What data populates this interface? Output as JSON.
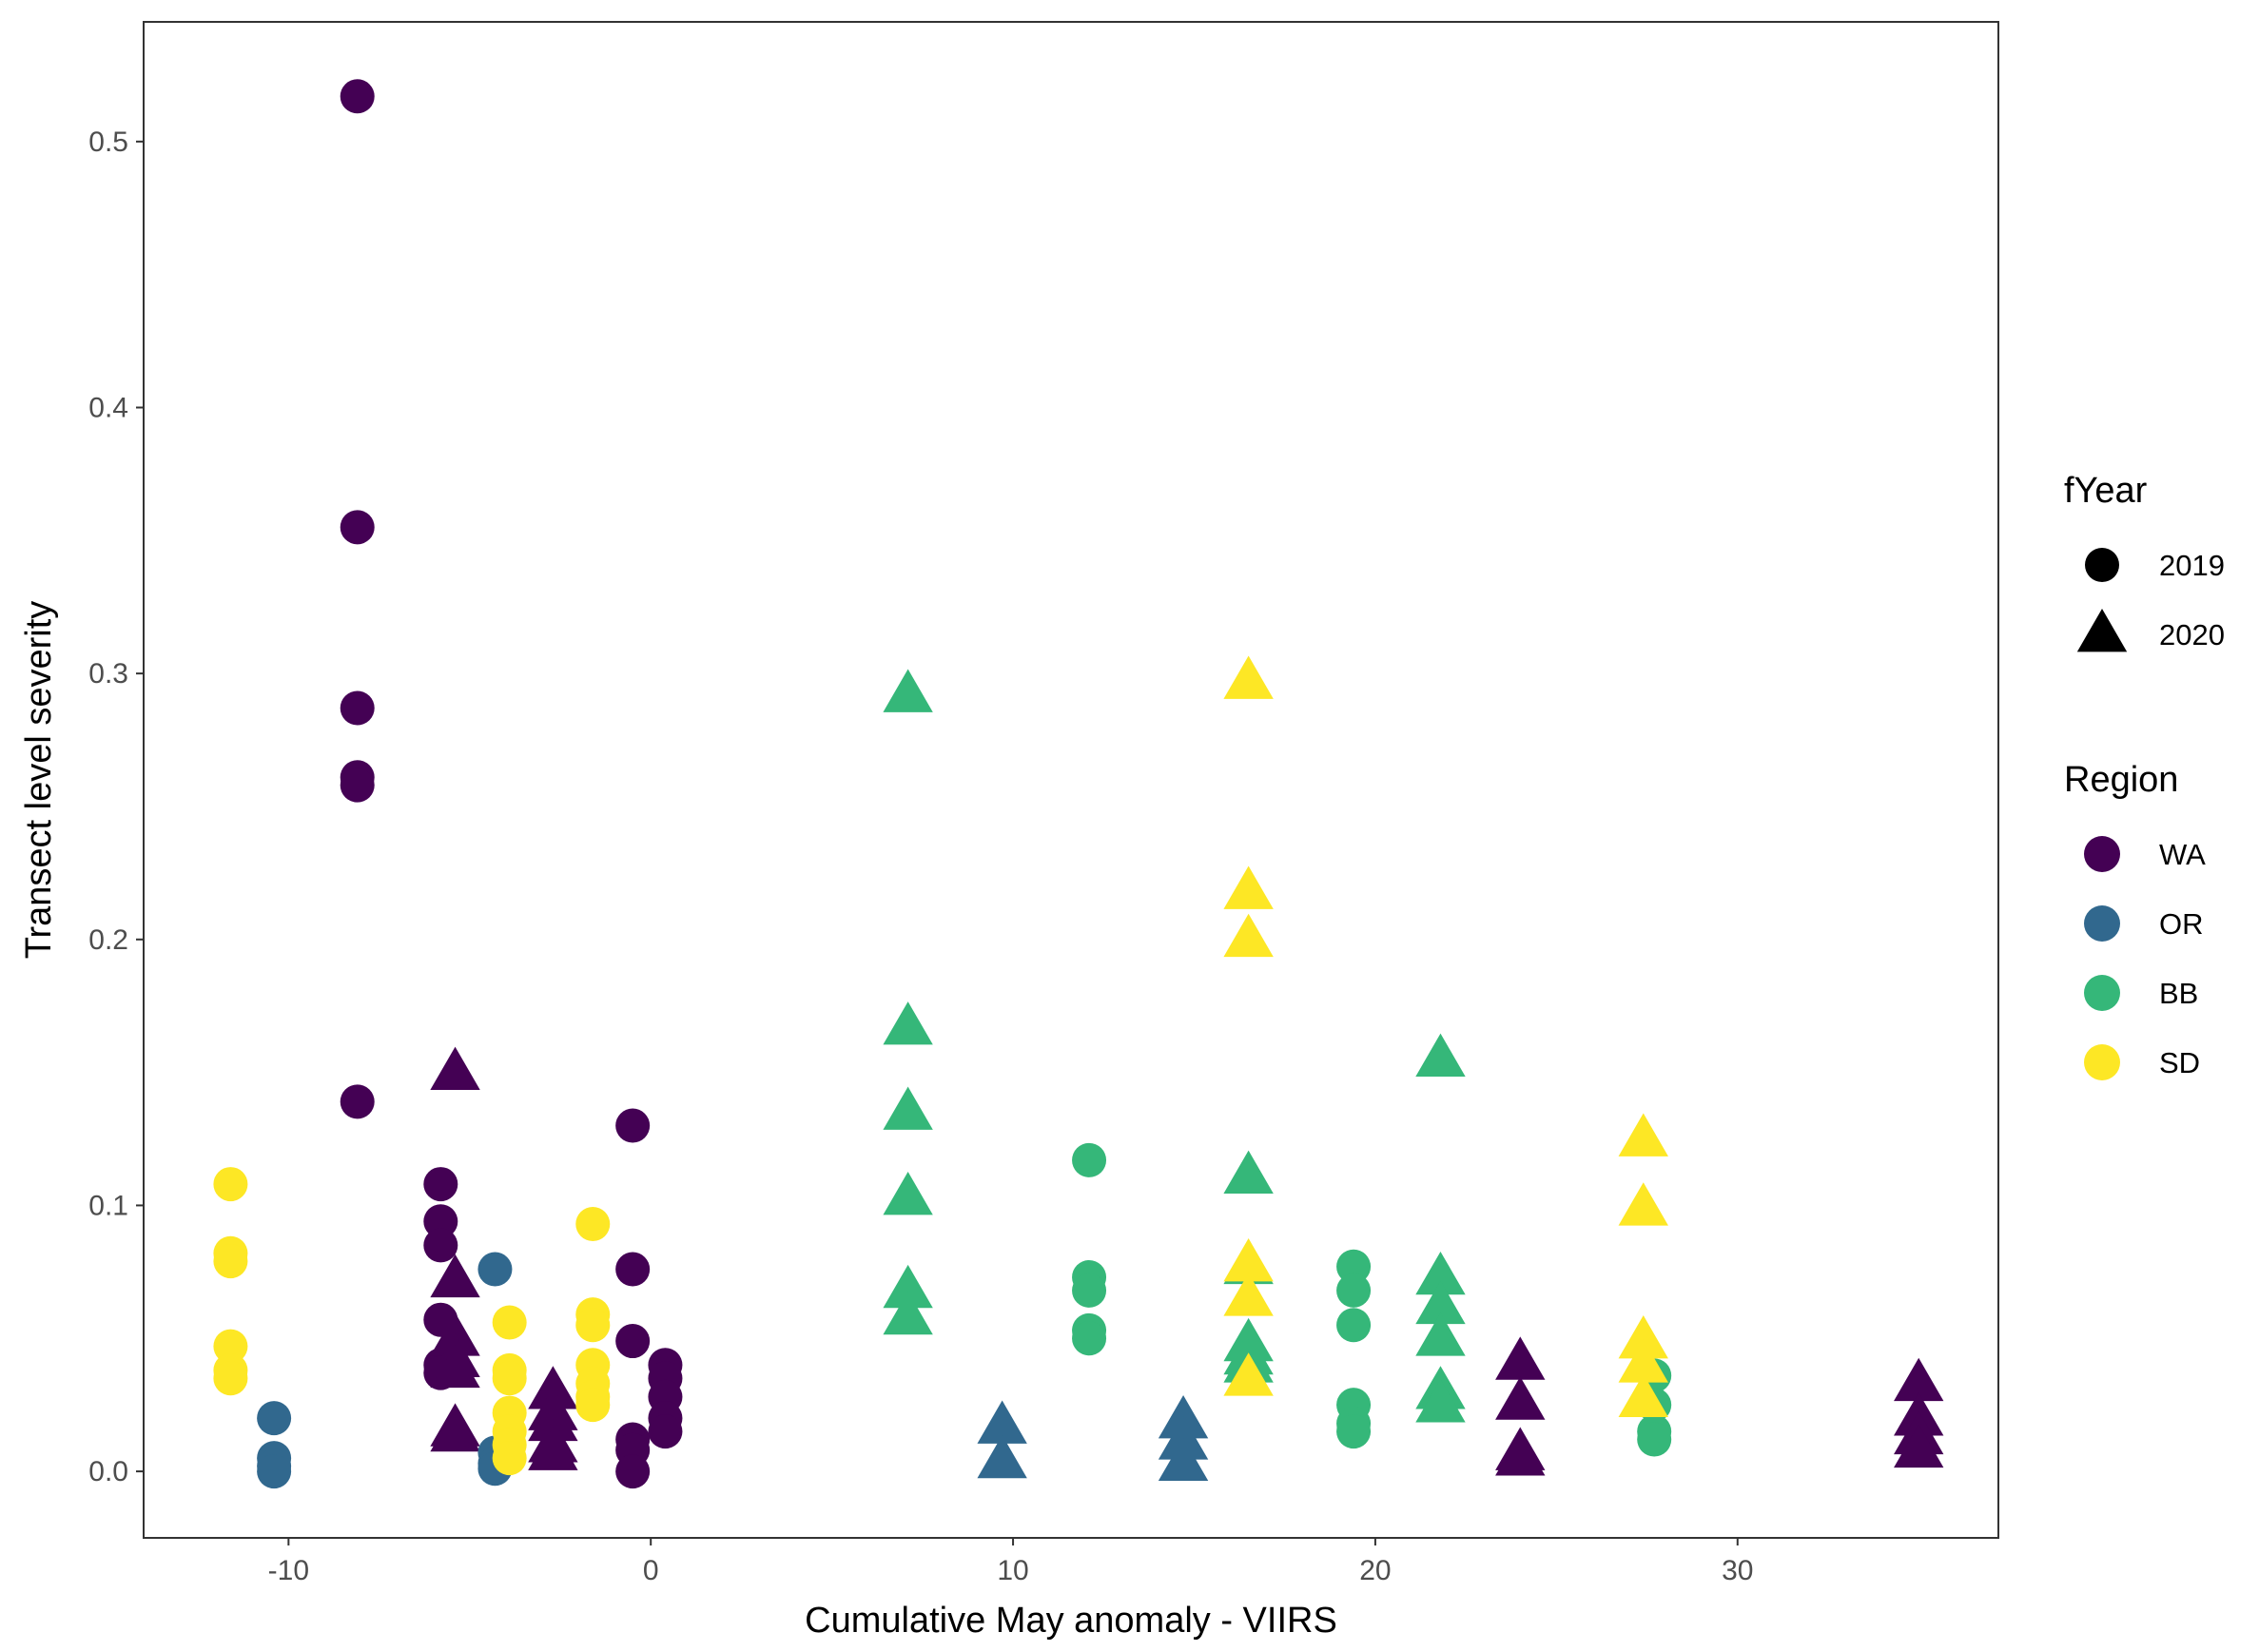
{
  "chart_data": {
    "type": "scatter",
    "xlabel": "Cumulative May anomaly - VIIRS",
    "ylabel": "Transect level severity",
    "xlim": [
      -14,
      37.2
    ],
    "ylim": [
      -0.025,
      0.545
    ],
    "xticks": [
      -10,
      0,
      10,
      20,
      30
    ],
    "xtick_labels": [
      "-10",
      "0",
      "10",
      "20",
      "30"
    ],
    "yticks": [
      0,
      0.1,
      0.2,
      0.3,
      0.4,
      0.5
    ],
    "ytick_labels": [
      "0.0",
      "0.1",
      "0.2",
      "0.3",
      "0.4",
      "0.5"
    ],
    "grid": false,
    "legend_position": "right",
    "legend": {
      "shape": {
        "title": "fYear",
        "entries": [
          {
            "label": "2019",
            "shape": "circle"
          },
          {
            "label": "2020",
            "shape": "triangle"
          }
        ]
      },
      "color": {
        "title": "Region",
        "entries": [
          {
            "label": "WA",
            "color": "#440154"
          },
          {
            "label": "OR",
            "color": "#31688E"
          },
          {
            "label": "BB",
            "color": "#35B779"
          },
          {
            "label": "SD",
            "color": "#FDE725"
          }
        ]
      }
    },
    "colors": {
      "WA": "#440154",
      "OR": "#31688E",
      "BB": "#35B779",
      "SD": "#FDE725"
    },
    "series": [
      {
        "region": "WA",
        "year": "2019",
        "points": [
          [
            -8.1,
            0.517
          ],
          [
            -8.1,
            0.355
          ],
          [
            -8.1,
            0.287
          ],
          [
            -8.1,
            0.261
          ],
          [
            -8.1,
            0.258
          ],
          [
            -8.1,
            0.139
          ],
          [
            -5.8,
            0.108
          ],
          [
            -5.8,
            0.094
          ],
          [
            -5.8,
            0.085
          ],
          [
            -5.8,
            0.057
          ],
          [
            -5.8,
            0.04
          ],
          [
            -5.8,
            0.037
          ],
          [
            -0.5,
            0.13
          ],
          [
            -0.5,
            0.076
          ],
          [
            -0.5,
            0.049
          ],
          [
            -0.5,
            0.012
          ],
          [
            -0.5,
            0.008
          ],
          [
            -0.5,
            0.0
          ],
          [
            0.4,
            0.04
          ],
          [
            0.4,
            0.035
          ],
          [
            0.4,
            0.028
          ],
          [
            0.4,
            0.02
          ],
          [
            0.4,
            0.015
          ]
        ]
      },
      {
        "region": "WA",
        "year": "2020",
        "points": [
          [
            -5.4,
            0.15
          ],
          [
            -5.4,
            0.072
          ],
          [
            -5.4,
            0.05
          ],
          [
            -5.4,
            0.042
          ],
          [
            -5.4,
            0.038
          ],
          [
            -5.4,
            0.016
          ],
          [
            -5.4,
            0.014
          ],
          [
            -2.7,
            0.03
          ],
          [
            -2.7,
            0.022
          ],
          [
            -2.7,
            0.018
          ],
          [
            -2.7,
            0.01
          ],
          [
            -2.7,
            0.007
          ],
          [
            24,
            0.041
          ],
          [
            24,
            0.026
          ],
          [
            24,
            0.007
          ],
          [
            24,
            0.005
          ],
          [
            35,
            0.033
          ],
          [
            35,
            0.02
          ],
          [
            35,
            0.013
          ],
          [
            35,
            0.008
          ]
        ]
      },
      {
        "region": "OR",
        "year": "2019",
        "points": [
          [
            -10.4,
            0.02
          ],
          [
            -10.4,
            0.005
          ],
          [
            -10.4,
            0.002
          ],
          [
            -10.4,
            0.0
          ],
          [
            -4.3,
            0.076
          ],
          [
            -4.3,
            0.007
          ],
          [
            -4.3,
            0.003
          ],
          [
            -4.3,
            0.001
          ]
        ]
      },
      {
        "region": "OR",
        "year": "2020",
        "points": [
          [
            9.7,
            0.017
          ],
          [
            9.7,
            0.004
          ],
          [
            14.7,
            0.019
          ],
          [
            14.7,
            0.011
          ],
          [
            14.7,
            0.003
          ]
        ]
      },
      {
        "region": "BB",
        "year": "2019",
        "points": [
          [
            12.1,
            0.117
          ],
          [
            12.1,
            0.073
          ],
          [
            12.1,
            0.068
          ],
          [
            12.1,
            0.053
          ],
          [
            12.1,
            0.05
          ],
          [
            19.4,
            0.077
          ],
          [
            19.4,
            0.068
          ],
          [
            19.4,
            0.055
          ],
          [
            19.4,
            0.025
          ],
          [
            19.4,
            0.018
          ],
          [
            19.4,
            0.015
          ],
          [
            27.7,
            0.036
          ],
          [
            27.7,
            0.025
          ],
          [
            27.7,
            0.015
          ],
          [
            27.7,
            0.012
          ]
        ]
      },
      {
        "region": "BB",
        "year": "2020",
        "points": [
          [
            7.1,
            0.292
          ],
          [
            7.1,
            0.167
          ],
          [
            7.1,
            0.135
          ],
          [
            7.1,
            0.103
          ],
          [
            7.1,
            0.068
          ],
          [
            7.1,
            0.058
          ],
          [
            16.5,
            0.111
          ],
          [
            16.5,
            0.077
          ],
          [
            16.5,
            0.048
          ],
          [
            16.5,
            0.043
          ],
          [
            16.5,
            0.04
          ],
          [
            21.8,
            0.155
          ],
          [
            21.8,
            0.073
          ],
          [
            21.8,
            0.062
          ],
          [
            21.8,
            0.05
          ],
          [
            21.8,
            0.03
          ],
          [
            21.8,
            0.025
          ]
        ]
      },
      {
        "region": "SD",
        "year": "2019",
        "points": [
          [
            -11.6,
            0.108
          ],
          [
            -11.6,
            0.082
          ],
          [
            -11.6,
            0.079
          ],
          [
            -11.6,
            0.047
          ],
          [
            -11.6,
            0.038
          ],
          [
            -11.6,
            0.035
          ],
          [
            -3.9,
            0.056
          ],
          [
            -3.9,
            0.038
          ],
          [
            -3.9,
            0.035
          ],
          [
            -3.9,
            0.022
          ],
          [
            -3.9,
            0.015
          ],
          [
            -3.9,
            0.01
          ],
          [
            -3.9,
            0.005
          ],
          [
            -1.6,
            0.093
          ],
          [
            -1.6,
            0.059
          ],
          [
            -1.6,
            0.055
          ],
          [
            -1.6,
            0.04
          ],
          [
            -1.6,
            0.033
          ],
          [
            -1.6,
            0.028
          ],
          [
            -1.6,
            0.025
          ]
        ]
      },
      {
        "region": "SD",
        "year": "2020",
        "points": [
          [
            16.5,
            0.297
          ],
          [
            16.5,
            0.218
          ],
          [
            16.5,
            0.2
          ],
          [
            16.5,
            0.078
          ],
          [
            16.5,
            0.065
          ],
          [
            16.5,
            0.035
          ],
          [
            27.4,
            0.125
          ],
          [
            27.4,
            0.099
          ],
          [
            27.4,
            0.049
          ],
          [
            27.4,
            0.04
          ],
          [
            27.4,
            0.027
          ]
        ]
      }
    ]
  }
}
